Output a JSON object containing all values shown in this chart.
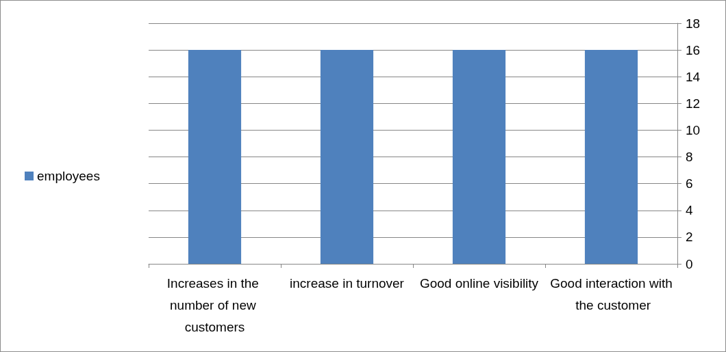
{
  "chart_data": {
    "type": "bar",
    "categories": [
      "Increases in the number of new customers",
      "increase in turnover",
      "Good online visibility",
      "Good interaction with the customer"
    ],
    "series": [
      {
        "name": "employees",
        "color": "#4f81bd",
        "values": [
          16,
          16,
          16,
          16
        ]
      }
    ],
    "ylim": [
      0,
      18
    ],
    "yticks": [
      0,
      2,
      4,
      6,
      8,
      10,
      12,
      14,
      16,
      18
    ],
    "grid": "y",
    "legend": "left"
  }
}
